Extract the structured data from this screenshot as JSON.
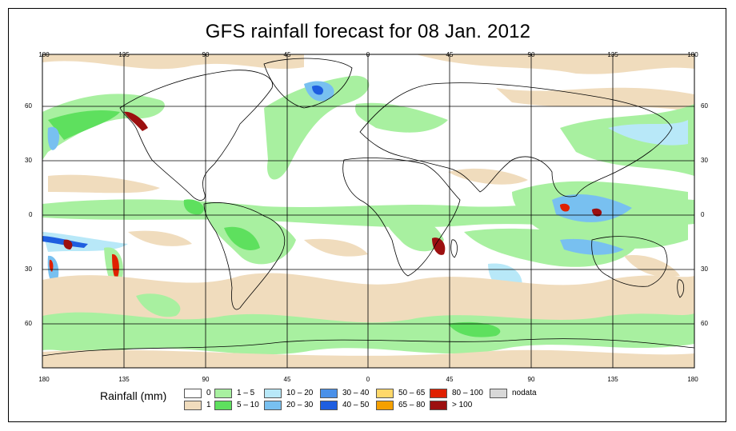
{
  "title": "GFS rainfall forecast for 08 Jan. 2012",
  "longitude_ticks": [
    "180",
    "135",
    "90",
    "45",
    "0",
    "45",
    "90",
    "135",
    "180"
  ],
  "latitude_ticks_left": [
    "60",
    "30",
    "0",
    "30",
    "60"
  ],
  "latitude_ticks_right": [
    "60",
    "30",
    "0",
    "30",
    "60"
  ],
  "legend": {
    "title": "Rainfall (mm)",
    "items": [
      {
        "label": "0",
        "color": "#ffffff"
      },
      {
        "label": "1",
        "color": "#f0dcbd"
      },
      {
        "label": "1 – 5",
        "color": "#a8f0a0"
      },
      {
        "label": "5 – 10",
        "color": "#5ee05e"
      },
      {
        "label": "10 – 20",
        "color": "#b8e8f8"
      },
      {
        "label": "20 – 30",
        "color": "#78c0f0"
      },
      {
        "label": "30 – 40",
        "color": "#4a90e8"
      },
      {
        "label": "40 – 50",
        "color": "#1e5ee0"
      },
      {
        "label": "50 – 65",
        "color": "#ffd86a"
      },
      {
        "label": "65 – 80",
        "color": "#f5a000"
      },
      {
        "label": "80 – 100",
        "color": "#e02000"
      },
      {
        "label": "> 100",
        "color": "#9c1010"
      },
      {
        "label": "nodata",
        "color": "#d8d8d8"
      }
    ]
  }
}
